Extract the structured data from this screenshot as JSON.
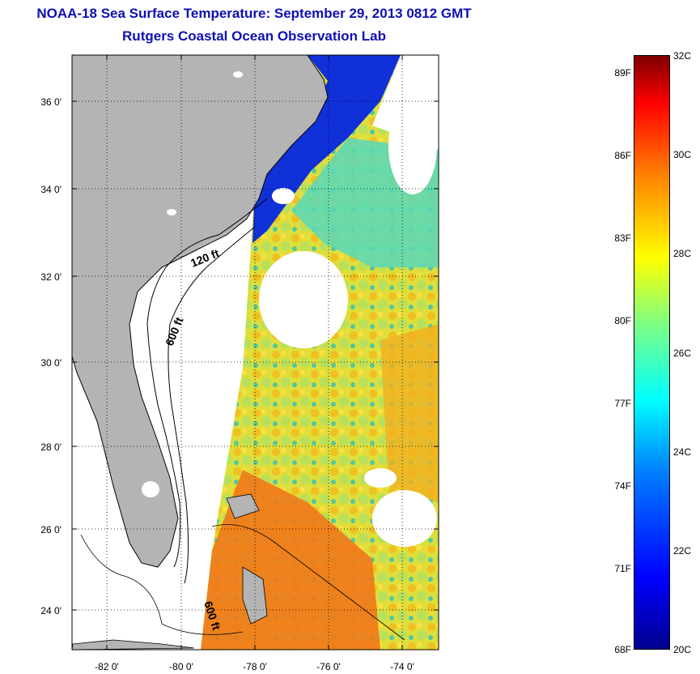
{
  "title_line1": "NOAA-18 Sea Surface Temperature:  September 29, 2013 0812 GMT",
  "title_line2": "Rutgers Coastal Ocean Observation Lab",
  "map": {
    "y_ticks": [
      "36 0'",
      "34 0'",
      "32 0'",
      "30 0'",
      "28 0'",
      "26 0'",
      "24 0'"
    ],
    "x_ticks": [
      "-82 0'",
      "-80 0'",
      "-78 0'",
      "-76 0'",
      "-74 0'"
    ],
    "contour_labels": [
      "120 ft",
      "600 ft",
      "600 ft"
    ],
    "colors": {
      "land": "#b4b4b4",
      "cloud": "#ffffff",
      "grid": "#000000"
    }
  },
  "colorbar": {
    "fahrenheit_labels": [
      "89F",
      "86F",
      "83F",
      "80F",
      "77F",
      "74F",
      "71F",
      "68F"
    ],
    "celsius_labels": [
      "32C",
      "30C",
      "28C",
      "26C",
      "24C",
      "22C",
      "20C"
    ],
    "range_c": [
      20,
      32
    ],
    "colors": [
      "#00008f",
      "#0000ff",
      "#0080ff",
      "#00ffff",
      "#80ff80",
      "#ffff00",
      "#ff8000",
      "#ff0000",
      "#800000"
    ]
  }
}
